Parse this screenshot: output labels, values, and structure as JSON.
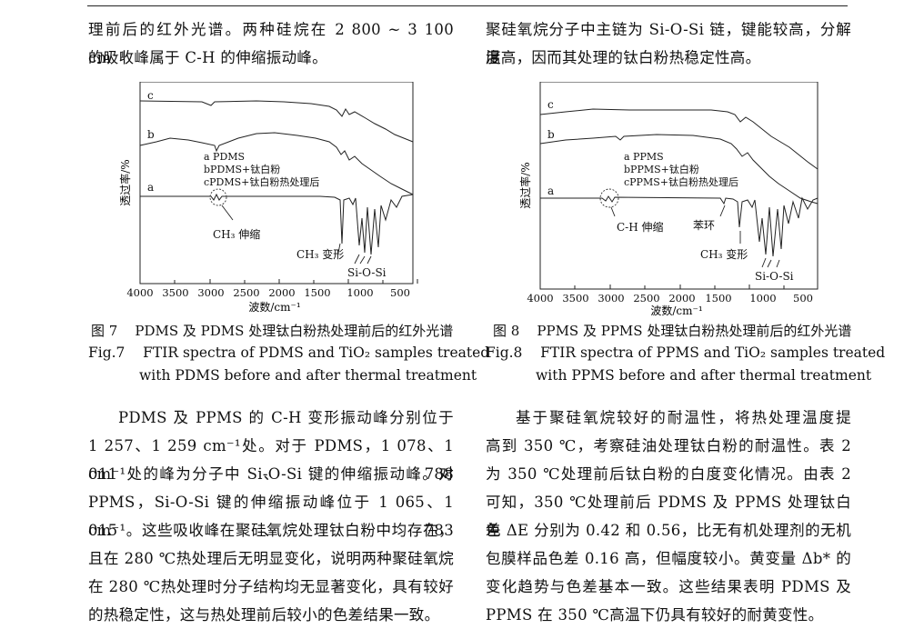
{
  "left_top": [
    "理前后的红外光谱。两种硅烷在 2 800 ~ 3 100 cm⁻¹",
    "的吸收峰属于 C-H 的伸缩振动峰。"
  ],
  "right_top": [
    "聚硅氧烷分子中主链为 Si-O-Si 链，键能较高，分解温",
    "度高，因而其处理的钛白粉热稳定性高。"
  ],
  "fig7": {
    "ylabel": "透过率/%",
    "xlabel": "波数/cm⁻¹",
    "xticks": [
      "4000",
      "3500",
      "3000",
      "2500",
      "2000",
      "1500",
      "1000",
      "500"
    ],
    "curve_labels": [
      "c",
      "b",
      "a"
    ],
    "legend": [
      "a PDMS",
      "bPDMS+钛白粉",
      "cPDMS+钛白粉热处理后"
    ],
    "annotations": [
      "CH₃ 伸缩",
      "CH₃ 变形",
      "Si-O-Si"
    ],
    "caption_zh_num": "图 7",
    "caption_zh": "PDMS 及 PDMS 处理钛白粉热处理前后的红外光谱",
    "caption_en_num": "Fig.7",
    "caption_en_1": "FTIR spectra of PDMS and TiO₂ samples treated",
    "caption_en_2": "with PDMS before and after thermal treatment"
  },
  "fig8": {
    "ylabel": "透过率/%",
    "xlabel": "波数/cm⁻¹",
    "xticks": [
      "4000",
      "3500",
      "3000",
      "2500",
      "2000",
      "1500",
      "1000",
      "500"
    ],
    "curve_labels": [
      "c",
      "b",
      "a"
    ],
    "legend": [
      "a PPMS",
      "bPPMS+钛白粉",
      "cPPMS+钛白粉热处理后"
    ],
    "annotations": [
      "C-H 伸缩",
      "苯环",
      "CH₃ 变形",
      "Si-O-Si"
    ],
    "caption_zh_num": "图 8",
    "caption_zh": "PPMS 及 PPMS 处理钛白粉热处理前后的红外光谱",
    "caption_en_num": "Fig.8",
    "caption_en_1": "FTIR spectra of PPMS and TiO₂ samples treated",
    "caption_en_2": "with PPMS before and after thermal treatment"
  },
  "left_body": [
    "PDMS 及 PPMS 的 C-H 变形振动峰分别位于",
    "1 257、1 259 cm⁻¹处。对于 PDMS，1 078、1 011、788",
    "cm⁻¹处的峰为分子中 Si-O-Si 键的伸缩振动峰。对",
    "PPMS，Si-O-Si 键的伸缩振动峰位于 1 065、1 015、783",
    "cm⁻¹。这些吸收峰在聚硅氧烷处理钛白粉中均存在，",
    "且在 280 ℃热处理后无明显变化，说明两种聚硅氧烷",
    "在 280 ℃热处理时分子结构均无显著变化，具有较好",
    "的热稳定性，这与热处理前后较小的色差结果一致。"
  ],
  "right_body": [
    "基于聚硅氧烷较好的耐温性，将热处理温度提",
    "高到 350 ℃，考察硅油处理钛白粉的耐温性。表 2",
    "为 350 ℃处理前后钛白粉的白度变化情况。由表 2",
    "可知，350 ℃处理前后 PDMS 及 PPMS 处理钛白色",
    "差 ΔE 分别为 0.42 和 0.56，比无有机处理剂的无机",
    "包膜样品色差 0.16 高，但幅度较小。黄变量 Δb* 的",
    "变化趋势与色差基本一致。这些结果表明 PDMS 及",
    "PPMS 在 350 ℃高温下仍具有较好的耐黄变性。"
  ]
}
